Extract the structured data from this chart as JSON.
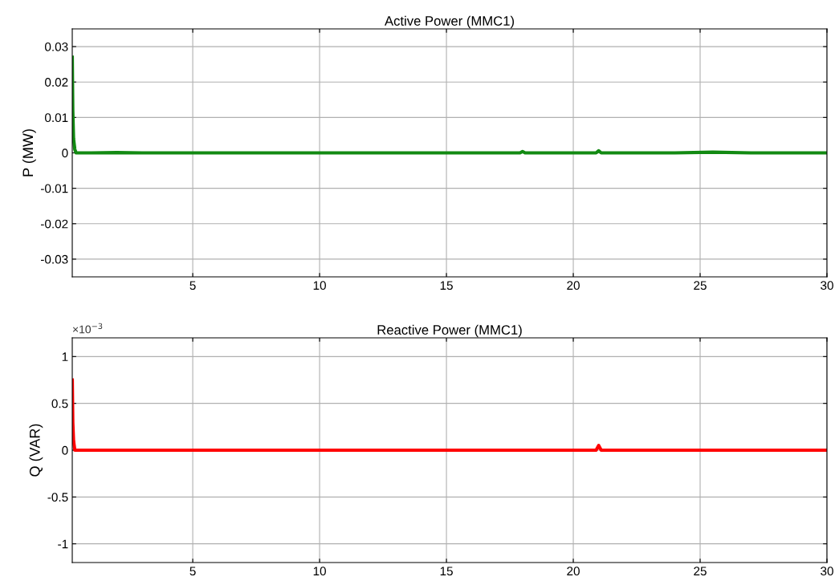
{
  "chart_data": [
    {
      "type": "line",
      "title": "Active Power (MMC1)",
      "ylabel": "P (MW)",
      "xlim": [
        0.25,
        30
      ],
      "xticks": [
        5,
        10,
        15,
        20,
        25,
        30
      ],
      "ylim": [
        -0.035,
        0.035
      ],
      "yticks": [
        -0.03,
        -0.02,
        -0.01,
        0,
        0.01,
        0.02,
        0.03
      ],
      "grid": true,
      "series": [
        {
          "color": "#128a12",
          "x": [
            0.25,
            0.27,
            0.3,
            0.35,
            0.4,
            1,
            2,
            3,
            4,
            5,
            6,
            8,
            10,
            12,
            14,
            16,
            17.9,
            18,
            18.1,
            20,
            20.9,
            21,
            21.1,
            22,
            24,
            25.5,
            27,
            29,
            30
          ],
          "values": [
            0.027,
            0.012,
            0.004,
            0.001,
            0,
            0,
            0.0001,
            0,
            0,
            0,
            0,
            0,
            0,
            0,
            0,
            0,
            0,
            0.0004,
            0,
            0,
            0,
            0.0006,
            0,
            0,
            0,
            0.0002,
            0,
            0,
            0
          ]
        }
      ]
    },
    {
      "type": "line",
      "title": "Reactive Power (MMC1)",
      "ylabel": "Q (VAR)",
      "annotations": [
        "×10$^{−3}$"
      ],
      "xlim": [
        0.25,
        30
      ],
      "xticks": [
        5,
        10,
        15,
        20,
        25,
        30
      ],
      "ylim": [
        -1.2,
        1.2
      ],
      "yticks": [
        {
          "value": -1,
          "label": "-1"
        },
        {
          "value": -0.5,
          "label": "-0.5"
        },
        0,
        0.5,
        1
      ],
      "grid": true,
      "series": [
        {
          "color": "#ff0000",
          "x": [
            0.25,
            0.27,
            0.3,
            0.35,
            0.4,
            1,
            2,
            3,
            4,
            5,
            6,
            8,
            10,
            12,
            14,
            16,
            18,
            20,
            20.9,
            21,
            21.1,
            22,
            24,
            25.5,
            25.6,
            27,
            29,
            30
          ],
          "values": [
            0.75,
            0.3,
            0.1,
            0,
            0,
            0,
            0,
            0,
            0,
            0,
            0,
            0,
            0,
            0,
            0,
            0,
            0,
            0,
            0,
            0.05,
            0,
            0,
            0,
            0,
            0,
            0,
            0,
            0
          ]
        }
      ]
    }
  ]
}
